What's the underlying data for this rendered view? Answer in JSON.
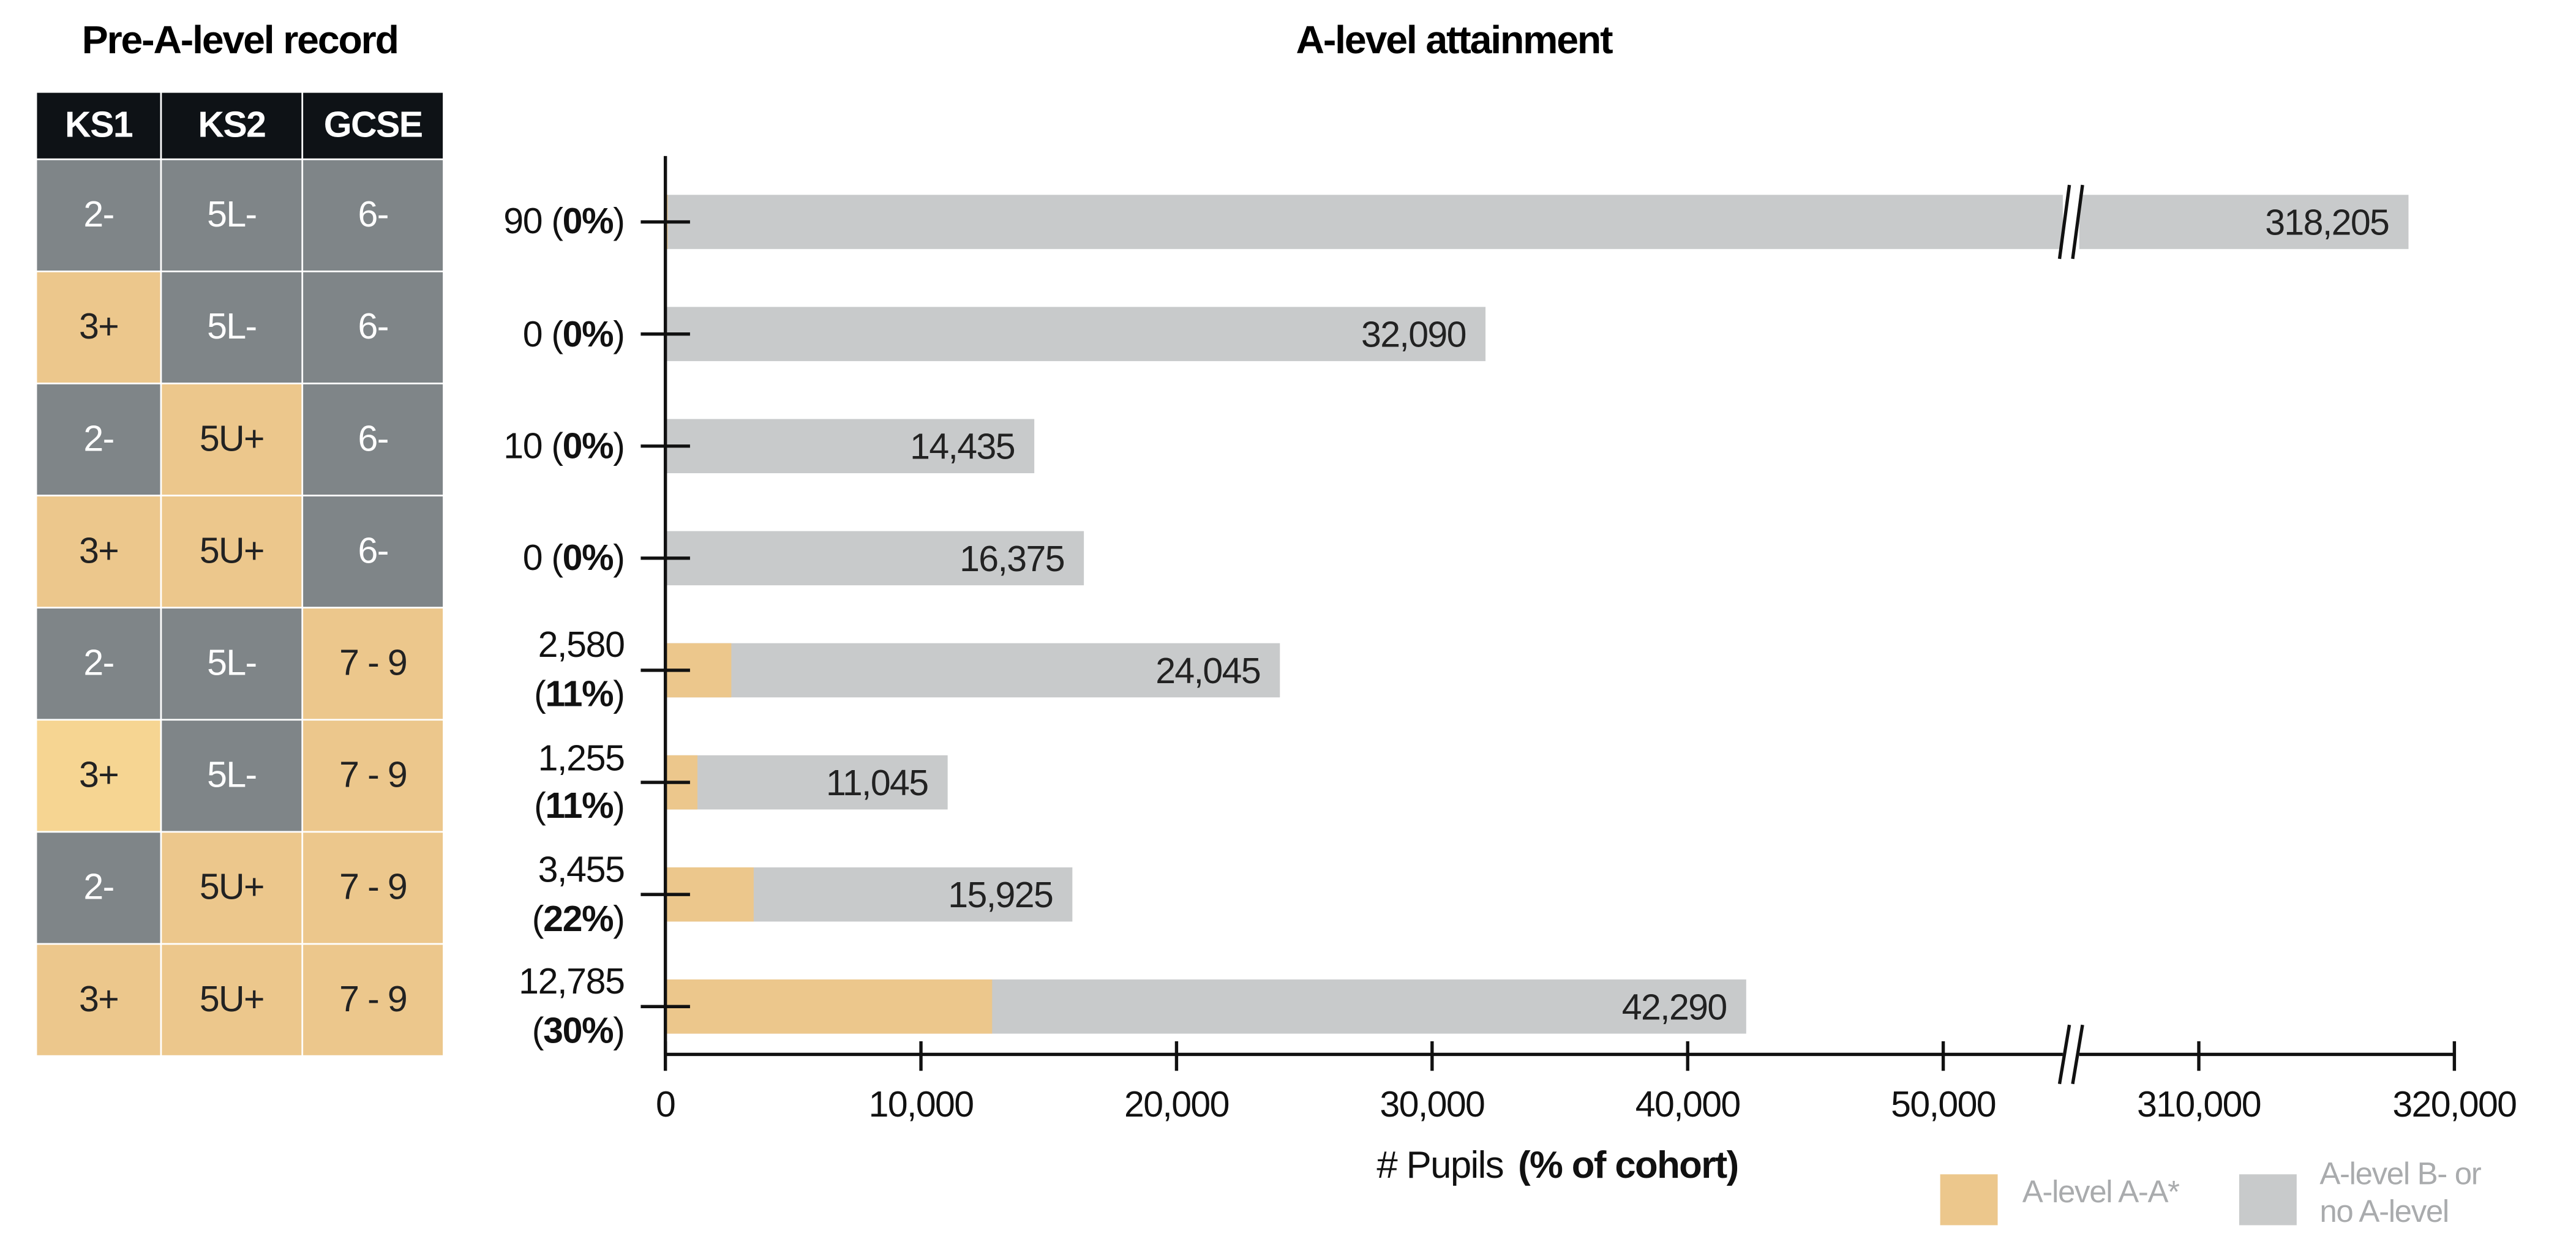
{
  "table": {
    "title": "Pre-A-level record",
    "header": [
      "KS1",
      "KS2",
      "GCSE"
    ],
    "rows": [
      [
        "2-",
        "5L-",
        "6-"
      ],
      [
        "3+",
        "5L-",
        "6-"
      ],
      [
        "2-",
        "5U+",
        "6-"
      ],
      [
        "3+",
        "5U+",
        "6-"
      ],
      [
        "2-",
        "5L-",
        "7 - 9"
      ],
      [
        "3+",
        "5L-",
        "7 - 9"
      ],
      [
        "2-",
        "5U+",
        "7 - 9"
      ],
      [
        "3+",
        "5U+",
        "7 - 9"
      ]
    ],
    "cell_colors": [
      [
        "#7f8588",
        "#7f8588",
        "#7f8588"
      ],
      [
        "#ecc78c",
        "#7f8588",
        "#7f8588"
      ],
      [
        "#7f8588",
        "#ecc78c",
        "#7f8588"
      ],
      [
        "#ecc78c",
        "#ecc78c",
        "#7f8588"
      ],
      [
        "#7f8588",
        "#7f8588",
        "#ecc78c"
      ],
      [
        "#f6d592",
        "#7f8588",
        "#ecc78c"
      ],
      [
        "#7f8588",
        "#ecc78c",
        "#ecc78c"
      ],
      [
        "#ecc78c",
        "#ecc78c",
        "#ecc78c"
      ]
    ]
  },
  "chart_data": {
    "type": "bar",
    "title": "A-level attainment",
    "x_label": "# Pupils",
    "x_label_bold": "(% of cohort)",
    "series": [
      {
        "name": "A-level A-A*",
        "color": "#ecc78c",
        "values": [
          90,
          0,
          10,
          0,
          2580,
          1255,
          3455,
          12785
        ],
        "value_labels": [
          "90",
          "0",
          "10",
          "0",
          "2,580",
          "1,255",
          "3,455",
          "12,785"
        ]
      },
      {
        "name": "A-level B- or no A-level",
        "color": "#c8cacb",
        "values": [
          318205,
          32090,
          14435,
          16375,
          24045,
          11045,
          15925,
          42290
        ],
        "value_labels": [
          "318,205",
          "32,090",
          "14,435",
          "16,375",
          "24,045",
          "11,045",
          "15,925",
          "42,290"
        ]
      }
    ],
    "share_labels": [
      "0%",
      "0%",
      "0%",
      "0%",
      "11%",
      "11%",
      "22%",
      "30%"
    ],
    "xlim": [
      0,
      320000
    ],
    "x_break": [
      55000,
      305000
    ],
    "xticks": [
      0,
      {
        "value": 10000,
        "label": "10,000"
      },
      {
        "value": 20000,
        "label": "20,000"
      },
      {
        "value": 30000,
        "label": "30,000"
      },
      {
        "value": 40000,
        "label": "40,000"
      },
      {
        "value": 50000,
        "label": "50,000"
      },
      {
        "value": 310000,
        "label": "310,000"
      },
      {
        "value": 320000,
        "label": "320,000"
      }
    ]
  }
}
